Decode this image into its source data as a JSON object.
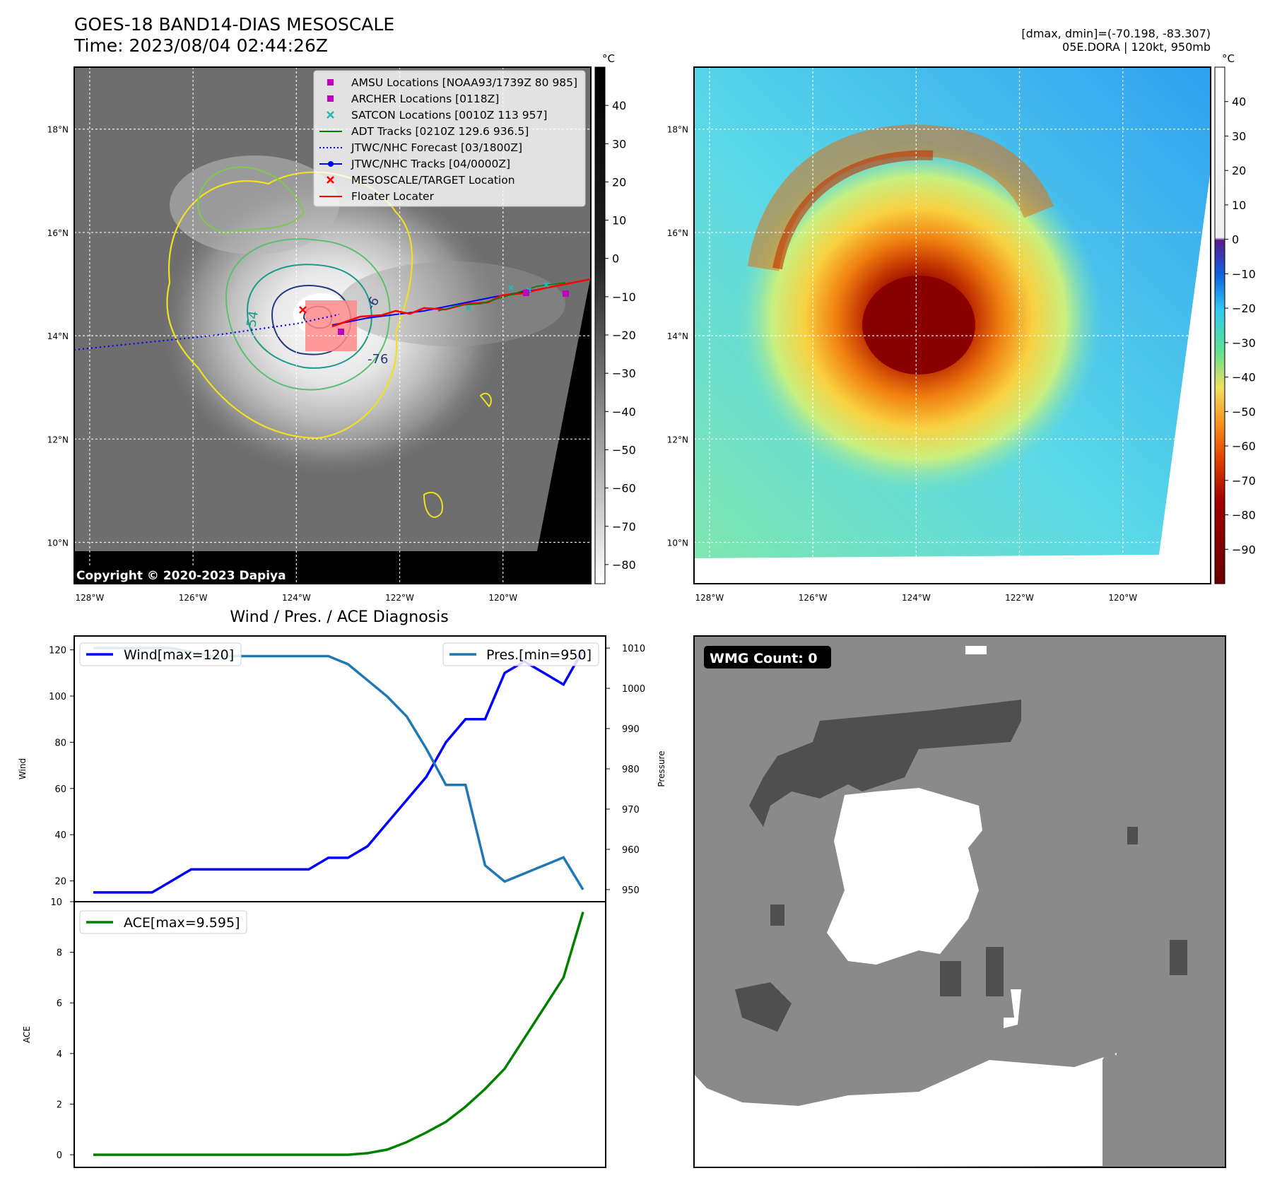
{
  "header": {
    "title_line1": "GOES-18 BAND14-DIAS MESOSCALE",
    "title_line2": "Time: 2023/08/04 02:44:26Z",
    "right_line1": "[dmax, dmin]=(-70.198, -83.307)",
    "right_line2": "05E.DORA | 120kt, 950mb"
  },
  "map": {
    "lat_ticks": [
      "18°N",
      "16°N",
      "14°N",
      "12°N",
      "10°N"
    ],
    "lat_values": [
      18,
      16,
      14,
      12,
      10
    ],
    "lon_ticks": [
      "128°W",
      "126°W",
      "124°W",
      "122°W",
      "120°W"
    ],
    "lon_values": [
      -128,
      -126,
      -124,
      -122,
      -120
    ],
    "lat_range": [
      9.2,
      19.2
    ],
    "lon_range": [
      -128.3,
      -118.3
    ],
    "copyright": "Copyright © 2020-2023 Dapiya",
    "contour_labels": [
      "-76",
      "-54",
      "-6"
    ],
    "legend": [
      {
        "label": "AMSU Locations [NOAA93/1739Z 80 985]",
        "marker": "square",
        "color": "#c000c0"
      },
      {
        "label": "ARCHER Locations [0118Z]",
        "marker": "square",
        "color": "#c000c0"
      },
      {
        "label": "SATCON Locations [0010Z 113 957]",
        "marker": "x",
        "color": "#20b8b8"
      },
      {
        "label": "ADT Tracks [0210Z 129.6 936.5]",
        "marker": "line",
        "color": "#008000"
      },
      {
        "label": "JTWC/NHC Forecast [03/1800Z]",
        "marker": "dotted",
        "color": "#0000ff"
      },
      {
        "label": "JTWC/NHC Tracks [04/0000Z]",
        "marker": "line-dot",
        "color": "#0000ff"
      },
      {
        "label": "MESOSCALE/TARGET Location",
        "marker": "x",
        "color": "#ff0000"
      },
      {
        "label": "Floater Locater",
        "marker": "line",
        "color": "#ff0000"
      }
    ],
    "gray_colorbar": {
      "unit": "°C",
      "ticks": [
        "40",
        "30",
        "20",
        "10",
        "0",
        "−10",
        "−20",
        "−30",
        "−40",
        "−50",
        "−60",
        "−70",
        "−80"
      ],
      "values": [
        40,
        30,
        20,
        10,
        0,
        -10,
        -20,
        -30,
        -40,
        -50,
        -60,
        -70,
        -80
      ],
      "range": [
        -85,
        50
      ]
    },
    "color_colorbar": {
      "unit": "°C",
      "ticks": [
        "40",
        "30",
        "20",
        "10",
        "0",
        "−10",
        "−20",
        "−30",
        "−40",
        "−50",
        "−60",
        "−70",
        "−80",
        "−90"
      ],
      "values": [
        40,
        30,
        20,
        10,
        0,
        -10,
        -20,
        -30,
        -40,
        -50,
        -60,
        -70,
        -80,
        -90
      ],
      "range": [
        -100,
        50
      ]
    }
  },
  "wmg": {
    "label": "WMG Count: 0"
  },
  "diag_title": "Wind / Pres. / ACE Diagnosis",
  "chart_data": [
    {
      "type": "line",
      "title": "Wind / Pres. / ACE Diagnosis",
      "xlabel": "",
      "ylabel": "Wind",
      "y2label": "Pressure",
      "ylim": [
        11,
        126
      ],
      "y2lim": [
        947,
        1013
      ],
      "yticks": [
        20,
        40,
        60,
        80,
        100,
        120
      ],
      "y2ticks": [
        950,
        960,
        970,
        980,
        990,
        1000,
        1010
      ],
      "x": [
        0,
        1,
        2,
        3,
        4,
        5,
        6,
        7,
        8,
        9,
        10,
        11,
        12,
        13,
        14,
        15,
        16,
        17,
        18,
        19,
        20,
        21,
        22,
        23,
        24,
        25
      ],
      "series": [
        {
          "name": "Wind[max=120]",
          "axis": "left",
          "color": "#0000ff",
          "values": [
            15,
            15,
            15,
            15,
            20,
            25,
            25,
            25,
            25,
            25,
            25,
            25,
            30,
            30,
            35,
            45,
            55,
            65,
            80,
            90,
            90,
            110,
            115,
            110,
            105,
            120
          ]
        },
        {
          "name": "Pres.[min=950]",
          "axis": "right",
          "color": "#1f77b4",
          "values": [
            1010,
            1010,
            1010,
            1010,
            1010,
            1009,
            1008,
            1008,
            1008,
            1008,
            1008,
            1008,
            1008,
            1006,
            1002,
            998,
            993,
            985,
            976,
            976,
            956,
            952,
            954,
            956,
            958,
            950
          ]
        }
      ]
    },
    {
      "type": "line",
      "xlabel": "",
      "ylabel": "ACE",
      "ylim": [
        -0.5,
        10
      ],
      "yticks": [
        0,
        2,
        4,
        6,
        8,
        10
      ],
      "x": [
        0,
        1,
        2,
        3,
        4,
        5,
        6,
        7,
        8,
        9,
        10,
        11,
        12,
        13,
        14,
        15,
        16,
        17,
        18,
        19,
        20,
        21,
        22,
        23,
        24,
        25
      ],
      "series": [
        {
          "name": "ACE[max=9.595]",
          "color": "#008000",
          "values": [
            0,
            0,
            0,
            0,
            0,
            0,
            0,
            0,
            0,
            0,
            0,
            0,
            0,
            0,
            0.06,
            0.2,
            0.5,
            0.88,
            1.3,
            1.9,
            2.6,
            3.4,
            4.6,
            5.8,
            7.0,
            9.595
          ]
        }
      ]
    }
  ]
}
